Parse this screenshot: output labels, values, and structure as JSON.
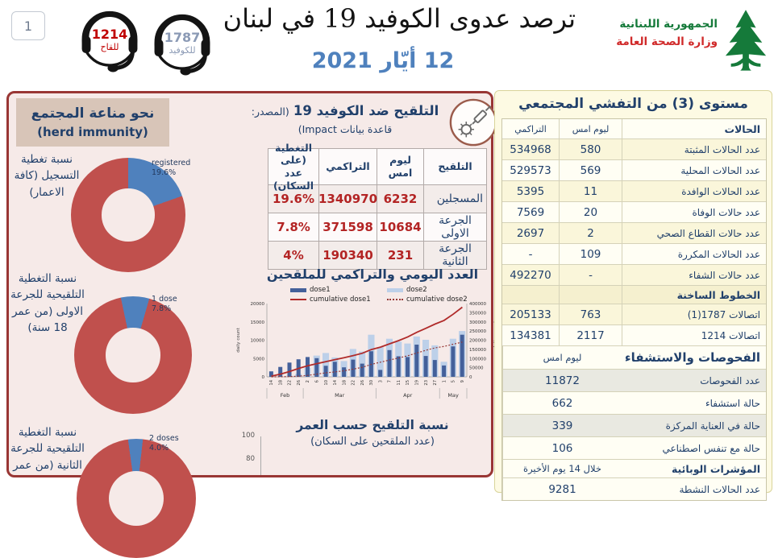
{
  "header": {
    "page_number": "1",
    "badge_vaccine": {
      "number": "1214",
      "label": "للقاح",
      "color": "#c00000"
    },
    "badge_covid": {
      "number": "1787",
      "label": "للكوفيد",
      "color": "#8b9ab5"
    },
    "title": "ترصد عدوى الكوفيد 19 في لبنان",
    "date": "12 أيّار 2021",
    "ministry": {
      "line1": "الجمهورية اللبنانية",
      "line2": "وزارة الصحة العامة"
    }
  },
  "herd_immunity": {
    "title": "نحو مناعة المجتمع",
    "subtitle": "(herd immunity)",
    "donuts": [
      {
        "label": "نسبة تغطية التسجيل (كافة الاعمار)",
        "annotation": "registered",
        "display": "19.6%",
        "value_pct": 19.6,
        "start_deg": 0
      },
      {
        "label": "نسبة التغطية التلقيحية للجرعة الاولى (من عمر 18 سنة)",
        "annotation": "1 dose",
        "display": "7.8%",
        "value_pct": 7.8,
        "start_deg": -12
      },
      {
        "label": "نسبة التغطية التلقيحية للجرعة الثانية (من عمر",
        "annotation": "2 doses",
        "display": "4.0%",
        "value_pct": 4.0,
        "start_deg": -8
      }
    ]
  },
  "vaccination": {
    "title_main": "التلقيح ضد الكوفيد 19",
    "title_source": "(المصدر: قاعدة بيانات Impact)",
    "table": {
      "headers": [
        "التلقيح",
        "ليوم امس",
        "التراكمي",
        "التغطية (على عدد السكان)"
      ],
      "rows": [
        {
          "label": "المسجلين",
          "yesterday": "6232",
          "cumulative": "1340970",
          "coverage": "19.6%"
        },
        {
          "label": "الجرعة الاولى",
          "yesterday": "10684",
          "cumulative": "371598",
          "coverage": "7.8%"
        },
        {
          "label": "الجرعة الثانية",
          "yesterday": "231",
          "cumulative": "190340",
          "coverage": "4%"
        }
      ]
    },
    "age_chart_title": "نسبة التلقيح حسب العمر",
    "age_chart_subtitle": "(عدد الملقحين على السكان)",
    "age_axis_ticks": [
      "100",
      "80"
    ]
  },
  "chart_data": [
    {
      "type": "bar+line",
      "title": "العدد اليومي والتراكمي للملقحين",
      "x_day_labels": [
        "14",
        "18",
        "22",
        "26",
        "2",
        "6",
        "10",
        "14",
        "18",
        "22",
        "26",
        "30",
        "3",
        "7",
        "11",
        "15",
        "19",
        "23",
        "27",
        "1",
        "5",
        "9"
      ],
      "month_groups": [
        {
          "label": "Feb",
          "count": 4
        },
        {
          "label": "Mar",
          "count": 8
        },
        {
          "label": "Apr",
          "count": 7
        },
        {
          "label": "May",
          "count": 3
        }
      ],
      "series": [
        {
          "name": "dose1",
          "type": "bar",
          "color": "#44609a",
          "values": [
            1500,
            2700,
            3900,
            4800,
            5400,
            5100,
            3000,
            4100,
            2600,
            4700,
            3600,
            7000,
            1900,
            7300,
            5600,
            5400,
            8800,
            5700,
            4600,
            3100,
            8300,
            11500
          ]
        },
        {
          "name": "dose2",
          "type": "bar",
          "color": "#bdd0e9",
          "values": [
            0,
            100,
            300,
            800,
            2500,
            5800,
            6500,
            5300,
            4300,
            7600,
            6900,
            11500,
            8100,
            10400,
            9600,
            9100,
            11000,
            10100,
            8600,
            4100,
            10400,
            12500
          ]
        },
        {
          "name": "cumulative dose1",
          "type": "line",
          "color": "#b02b2a",
          "axis": "right",
          "values": [
            4000,
            15000,
            29000,
            46000,
            60000,
            72000,
            83000,
            94000,
            104000,
            116000,
            129000,
            149000,
            162000,
            180000,
            198000,
            218000,
            243000,
            265000,
            288000,
            308000,
            342000,
            380000
          ]
        },
        {
          "name": "cumulative dose2",
          "type": "line-dotted",
          "color": "#953735",
          "axis": "right",
          "values": [
            0,
            300,
            1200,
            3500,
            8000,
            15000,
            22000,
            27000,
            33000,
            42000,
            52000,
            68000,
            80000,
            92000,
            103000,
            115000,
            130000,
            145000,
            158000,
            166000,
            178000,
            190000
          ]
        }
      ],
      "left_axis": {
        "label": "daily count",
        "min": 0,
        "max": 20000,
        "ticks": [
          0,
          5000,
          10000,
          15000,
          20000
        ]
      },
      "right_axis": {
        "label": "cumulative count",
        "min": 0,
        "max": 400000,
        "ticks": [
          0,
          50000,
          100000,
          150000,
          200000,
          250000,
          300000,
          350000,
          400000
        ]
      },
      "legend_position": "top"
    },
    {
      "type": "bar",
      "title": "نسبة التلقيح حسب العمر",
      "subtitle": "(عدد الملقحين على السكان)",
      "ylabel_ticks_visible": [
        100,
        80
      ],
      "clipped": true
    }
  ],
  "outbreak": {
    "title": "مستوى (3) من التفشي المجتمعي",
    "cases": {
      "headers": {
        "label": "الحالات",
        "yesterday": "ليوم امس",
        "cumulative": "التراكمي"
      },
      "rows": [
        {
          "label": "عدد الحالات المثبتة",
          "yesterday": "580",
          "cumulative": "534968"
        },
        {
          "label": "عدد الحالات المحلية",
          "yesterday": "569",
          "cumulative": "529573"
        },
        {
          "label": "عدد الحالات الوافدة",
          "yesterday": "11",
          "cumulative": "5395"
        },
        {
          "label": "عدد حالات الوفاة",
          "yesterday": "20",
          "cumulative": "7569"
        },
        {
          "label": "عدد حالات القطاع الصحي",
          "yesterday": "2",
          "cumulative": "2697"
        },
        {
          "label": "عدد الحالات المكررة",
          "yesterday": "109",
          "cumulative": "-"
        },
        {
          "label": "عدد حالات الشفاء",
          "yesterday": "-",
          "cumulative": "492270"
        }
      ]
    },
    "hotlines": {
      "header": "الخطوط الساخنة",
      "rows": [
        {
          "label": "اتصالات 1787(1)",
          "yesterday": "763",
          "cumulative": "205133"
        },
        {
          "label": "اتصالات 1214",
          "yesterday": "2117",
          "cumulative": "134381"
        }
      ]
    },
    "tests": {
      "header": "الفحوصات والاستشفاء",
      "col": "ليوم امس",
      "rows": [
        {
          "label": "عدد الفحوصات",
          "value": "11872"
        },
        {
          "label": "حالة استشفاء",
          "value": "662"
        },
        {
          "label": "حالة في العناية المركزة",
          "value": "339"
        },
        {
          "label": "حالة مع تنفس اصطناعي",
          "value": "106"
        }
      ]
    },
    "indicators": {
      "header": "المؤشرات الوبائية",
      "col": "خلال 14 يوم الأخيرة",
      "rows": [
        {
          "label": "عدد الحالات النشطة",
          "value": "9281"
        }
      ]
    }
  },
  "icons": {
    "headset-icon": "call-center headset",
    "virus-syringe-icon": "virus with syringe (vaccination)",
    "cedar-tree-logo": "Lebanon cedar tree"
  },
  "colors": {
    "accent_red_border": "#993634",
    "navy": "#21406b",
    "value_red": "#b32424",
    "date_blue": "#4f81bd",
    "donut_blue": "#4f81bd",
    "donut_red": "#c0504d",
    "panel_pink": "#f6eae8",
    "panel_yellow": "#fdfae3",
    "logo_green": "#157a3a",
    "logo_red": "#d02a2a"
  }
}
